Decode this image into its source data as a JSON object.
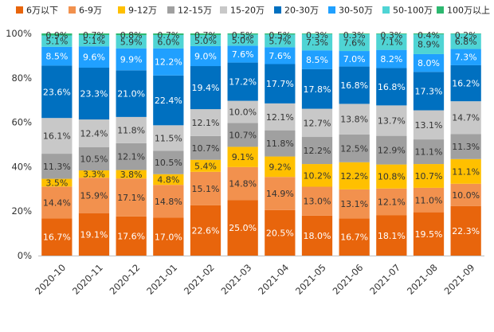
{
  "chart_data": {
    "type": "bar",
    "stacked": true,
    "normalized": true,
    "title": "",
    "xlabel": "",
    "ylabel": "",
    "ylim": [
      0,
      100
    ],
    "yticks": [
      "0%",
      "20%",
      "40%",
      "60%",
      "80%",
      "100%"
    ],
    "legend_position": "top",
    "categories": [
      "2020-10",
      "2020-11",
      "2020-12",
      "2021-01",
      "2021-02",
      "2021-03",
      "2021-04",
      "2021-05",
      "2021-06",
      "2021-07",
      "2021-08",
      "2021-09"
    ],
    "series": [
      {
        "name": "6万以下",
        "color": "#E8650C",
        "values": [
          16.7,
          19.1,
          17.6,
          17.0,
          22.6,
          25.0,
          20.5,
          18.0,
          16.7,
          18.1,
          19.5,
          22.3
        ]
      },
      {
        "name": "6-9万",
        "color": "#F2914E",
        "values": [
          14.4,
          15.9,
          17.1,
          14.8,
          15.1,
          14.8,
          14.9,
          13.0,
          13.1,
          12.1,
          11.0,
          10.0
        ]
      },
      {
        "name": "9-12万",
        "color": "#FFC000",
        "values": [
          3.5,
          3.3,
          3.8,
          4.8,
          5.4,
          9.1,
          9.2,
          10.2,
          12.2,
          10.8,
          10.7,
          11.1
        ]
      },
      {
        "name": "12-15万",
        "color": "#A0A0A0",
        "values": [
          11.3,
          10.5,
          12.1,
          10.5,
          10.7,
          10.7,
          11.8,
          12.2,
          12.5,
          12.9,
          11.1,
          11.3
        ]
      },
      {
        "name": "15-20万",
        "color": "#C8C8C8",
        "values": [
          16.1,
          12.4,
          11.8,
          11.5,
          12.1,
          10.0,
          12.1,
          12.7,
          13.8,
          13.7,
          13.1,
          14.7
        ]
      },
      {
        "name": "20-30万",
        "color": "#0070C0",
        "values": [
          23.6,
          23.3,
          21.0,
          22.4,
          19.4,
          17.2,
          17.7,
          17.8,
          16.8,
          16.8,
          17.3,
          16.2
        ]
      },
      {
        "name": "30-50万",
        "color": "#20A0FF",
        "values": [
          8.5,
          9.6,
          9.9,
          12.2,
          9.0,
          7.6,
          7.6,
          8.5,
          7.0,
          8.2,
          8.0,
          7.3
        ]
      },
      {
        "name": "50-100万",
        "color": "#4FD4D4",
        "values": [
          5.1,
          5.1,
          5.9,
          6.0,
          5.0,
          5.0,
          5.7,
          7.3,
          7.6,
          7.1,
          8.9,
          6.8
        ]
      },
      {
        "name": "100万以上",
        "color": "#2DB870",
        "values": [
          0.9,
          0.7,
          0.8,
          0.7,
          0.7,
          0.5,
          0.5,
          0.3,
          0.3,
          0.3,
          0.4,
          0.2
        ]
      }
    ]
  }
}
